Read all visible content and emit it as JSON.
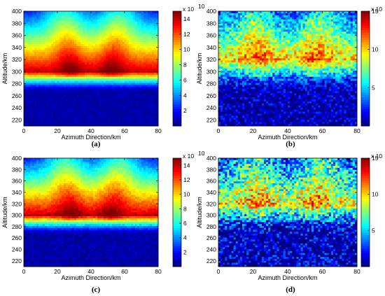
{
  "chart_data": [
    {
      "type": "heatmap",
      "panel_label": "a",
      "xlabel": "Azimuth Direction/km",
      "ylabel": "Altitude/km",
      "xlim": [
        0,
        80
      ],
      "ylim": [
        210,
        400
      ],
      "xticks": [
        0,
        20,
        40,
        60,
        80
      ],
      "yticks": [
        220,
        240,
        260,
        280,
        300,
        320,
        340,
        360,
        380,
        400
      ],
      "colorbar": {
        "exponent_label": "x 10",
        "exponent": "10",
        "ticks": [
          2,
          4,
          6,
          8,
          10,
          12,
          14
        ],
        "range": [
          0,
          15
        ]
      },
      "layer_peak_altitude": 300,
      "layer_peak_value": 14,
      "intrusion_centers": [
        28,
        52
      ],
      "noise": 0.3
    },
    {
      "type": "heatmap",
      "panel_label": "b",
      "xlabel": "Azimuth Direction/km",
      "ylabel": "Altitude/km",
      "xlim": [
        0,
        80
      ],
      "ylim": [
        210,
        400
      ],
      "xticks": [
        0,
        20,
        40,
        60,
        80
      ],
      "yticks": [
        220,
        240,
        260,
        280,
        300,
        320,
        340,
        360,
        380,
        400
      ],
      "colorbar": {
        "exponent_label": "x 10",
        "exponent": "9",
        "ticks": [
          5,
          10,
          15
        ],
        "range": [
          0,
          15
        ]
      },
      "layer_peak_altitude": 320,
      "layer_peak_value": 10,
      "intrusion_centers": [
        24,
        55
      ],
      "noise": 2.2
    },
    {
      "type": "heatmap",
      "panel_label": "c",
      "xlabel": "Azimuth Direction/km",
      "ylabel": "Altitude/km",
      "xlim": [
        0,
        80
      ],
      "ylim": [
        210,
        400
      ],
      "xticks": [
        0,
        20,
        40,
        60,
        80
      ],
      "yticks": [
        220,
        240,
        260,
        280,
        300,
        320,
        340,
        360,
        380,
        400
      ],
      "colorbar": {
        "exponent_label": "x 10",
        "exponent": "10",
        "ticks": [
          2,
          4,
          6,
          8,
          10,
          12,
          14
        ],
        "range": [
          0,
          15
        ]
      },
      "layer_peak_altitude": 300,
      "layer_peak_value": 14,
      "intrusion_centers": [
        28,
        52
      ],
      "noise": 0.5
    },
    {
      "type": "heatmap",
      "panel_label": "d",
      "xlabel": "Azimuth Direction/km",
      "ylabel": "Altitude/km",
      "xlim": [
        0,
        80
      ],
      "ylim": [
        210,
        400
      ],
      "xticks": [
        0,
        20,
        40,
        60,
        80
      ],
      "yticks": [
        220,
        240,
        260,
        280,
        300,
        320,
        340,
        360,
        380,
        400
      ],
      "colorbar": {
        "exponent_label": "x 10",
        "exponent": "9",
        "ticks": [
          5,
          10,
          15
        ],
        "range": [
          0,
          15
        ]
      },
      "layer_peak_altitude": 320,
      "layer_peak_value": 9,
      "intrusion_centers": [
        24,
        55
      ],
      "noise": 3.2
    }
  ],
  "captions": [
    "(a)",
    "(b)",
    "(c)",
    "(d)"
  ]
}
